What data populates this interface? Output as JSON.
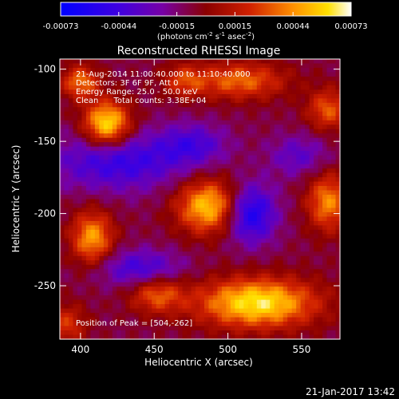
{
  "chart_data": {
    "type": "heatmap",
    "title": "Reconstructed RHESSI Image",
    "xlabel": "Heliocentric X (arcsec)",
    "ylabel": "Heliocentric Y (arcsec)",
    "xlim": [
      386,
      576
    ],
    "ylim": [
      -287,
      -93
    ],
    "x_ticks": [
      400,
      450,
      500,
      550
    ],
    "y_ticks": [
      -100,
      -150,
      -200,
      -250
    ],
    "colorbar": {
      "ticks": [
        "-0.00073",
        "-0.00044",
        "-0.00015",
        "0.00015",
        "0.00044",
        "0.00073"
      ],
      "label_main": "(photons cm",
      "label_sup1": "-2",
      "label_mid1": " s",
      "label_sup2": "-1",
      "label_mid2": " asec",
      "label_sup3": "-2",
      "label_end": ")",
      "range": [
        -0.00073,
        0.00073
      ]
    },
    "annotations": [
      "21-Aug-2014 11:00:40.000 to 11:10:40.000",
      "Detectors: 3F 6F 9F, Att 0",
      "Energy Range: 25.0 - 50.0 keV",
      "Clean      Total counts: 3.38E+04"
    ],
    "peak_text": "Position of Peak = [504,-262]",
    "sources": [
      {
        "x": 418,
        "y": -138,
        "sx": 11,
        "sy": 11,
        "amp": 0.00073
      },
      {
        "x": 400,
        "y": -109,
        "sx": 9,
        "sy": 8,
        "amp": 0.00046
      },
      {
        "x": 487,
        "y": -195,
        "sx": 15,
        "sy": 13,
        "amp": 0.00065
      },
      {
        "x": 408,
        "y": -217,
        "sx": 10,
        "sy": 13,
        "amp": 0.00055
      },
      {
        "x": 520,
        "y": -262,
        "sx": 28,
        "sy": 12,
        "amp": 0.00073
      },
      {
        "x": 452,
        "y": -256,
        "sx": 13,
        "sy": 9,
        "amp": 0.0004
      },
      {
        "x": 568,
        "y": -192,
        "sx": 10,
        "sy": 14,
        "amp": 0.0005
      },
      {
        "x": 508,
        "y": -108,
        "sx": 22,
        "sy": 9,
        "amp": 0.00044
      },
      {
        "x": 568,
        "y": -128,
        "sx": 10,
        "sy": 10,
        "amp": 0.0004
      },
      {
        "x": 390,
        "y": -277,
        "sx": 10,
        "sy": 10,
        "amp": 0.00032
      },
      {
        "x": 470,
        "y": -108,
        "sx": 10,
        "sy": 8,
        "amp": 0.0003
      },
      {
        "x": 426,
        "y": -164,
        "sx": 32,
        "sy": 14,
        "amp": -0.0004
      },
      {
        "x": 476,
        "y": -152,
        "sx": 16,
        "sy": 10,
        "amp": -0.0003
      },
      {
        "x": 515,
        "y": -200,
        "sx": 12,
        "sy": 14,
        "amp": -0.00055
      },
      {
        "x": 440,
        "y": -238,
        "sx": 20,
        "sy": 9,
        "amp": -0.00035
      },
      {
        "x": 548,
        "y": -160,
        "sx": 14,
        "sy": 10,
        "amp": -0.00025
      }
    ]
  },
  "footer": {
    "timestamp": "21-Jan-2017 13:42"
  }
}
